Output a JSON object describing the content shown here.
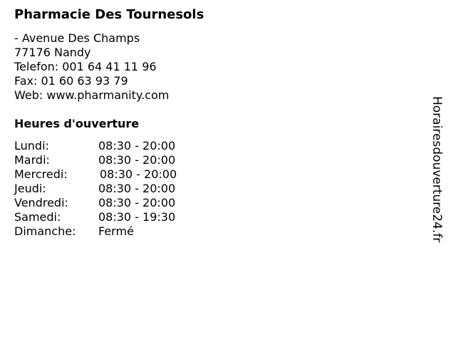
{
  "title": "Pharmacie Des Tournesols",
  "address": {
    "street": "- Avenue Des Champs",
    "city": "77176 Nandy",
    "phone": "Telefon: 001 64 41 11 96",
    "fax": "Fax: 01 60 63 93 79",
    "web": "Web: www.pharmanity.com"
  },
  "hours_heading": "Heures d'ouverture",
  "hours": [
    {
      "day": "Lundi:",
      "time": "08:30 - 20:00"
    },
    {
      "day": "Mardi:",
      "time": "08:30 - 20:00"
    },
    {
      "day": "Mercredi:",
      "time": "08:30 - 20:00"
    },
    {
      "day": "Jeudi:",
      "time": "08:30 - 20:00"
    },
    {
      "day": "Vendredi:",
      "time": "08:30 - 20:00"
    },
    {
      "day": "Samedi:",
      "time": "08:30 - 19:30"
    },
    {
      "day": "Dimanche:",
      "time": "Fermé"
    }
  ],
  "side_brand": "Horairesdouverture24.fr"
}
